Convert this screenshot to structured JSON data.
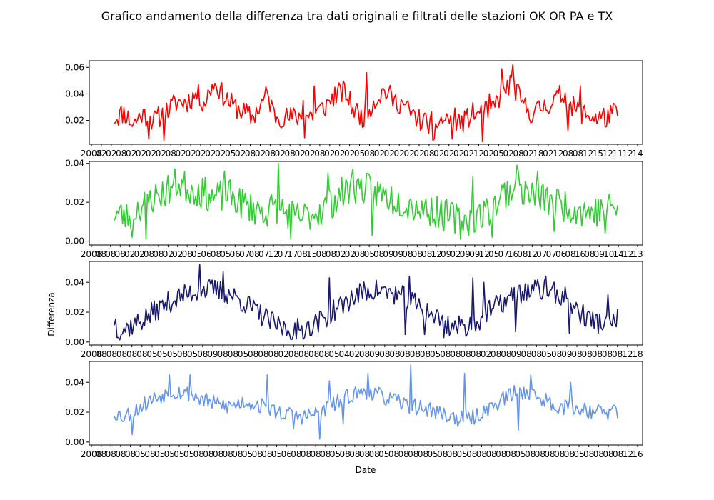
{
  "figure": {
    "suptitle": "Grafico andamento della differenza tra dati originali e filtrati delle stazioni OK OR PA e TX",
    "ylabel": "Differenza",
    "xlabel": "Date"
  },
  "chart_data": [
    {
      "type": "line",
      "color": "#ff0000",
      "ylim": [
        0.002,
        0.065
      ],
      "yticks": [
        0.02,
        0.04,
        0.06
      ],
      "ytick_labels": [
        "0.02",
        "0.04",
        "0.06"
      ],
      "xtick_labels": [
        "2008",
        "02",
        "02",
        "08",
        "02",
        "02",
        "02",
        "02",
        "08",
        "02",
        "02",
        "02",
        "02",
        "02",
        "05",
        "02",
        "08",
        "02",
        "08",
        "02",
        "08",
        "02",
        "02",
        "08",
        "02",
        "02",
        "02",
        "05",
        "08",
        "02",
        "02",
        "02",
        "02",
        "02",
        "08",
        "02",
        "02",
        "02",
        "02",
        "12",
        "02",
        "05",
        "02",
        "08",
        "02",
        "18",
        "02",
        "12",
        "08",
        "08",
        "12",
        "15",
        "12",
        "11",
        "12",
        "14"
      ],
      "x_count": 366,
      "anchors": [
        [
          0,
          0.022
        ],
        [
          8,
          0.026
        ],
        [
          15,
          0.017
        ],
        [
          22,
          0.025
        ],
        [
          32,
          0.02
        ],
        [
          42,
          0.027
        ],
        [
          50,
          0.034
        ],
        [
          58,
          0.034
        ],
        [
          66,
          0.04
        ],
        [
          72,
          0.033
        ],
        [
          80,
          0.05
        ],
        [
          86,
          0.04
        ],
        [
          95,
          0.031
        ],
        [
          104,
          0.026
        ],
        [
          110,
          0.022
        ],
        [
          116,
          0.03
        ],
        [
          122,
          0.04
        ],
        [
          128,
          0.024
        ],
        [
          138,
          0.022
        ],
        [
          148,
          0.023
        ],
        [
          158,
          0.024
        ],
        [
          168,
          0.03
        ],
        [
          176,
          0.039
        ],
        [
          184,
          0.042
        ],
        [
          190,
          0.03
        ],
        [
          198,
          0.022
        ],
        [
          208,
          0.035
        ],
        [
          216,
          0.043
        ],
        [
          224,
          0.034
        ],
        [
          230,
          0.033
        ],
        [
          238,
          0.024
        ],
        [
          246,
          0.019
        ],
        [
          254,
          0.018
        ],
        [
          262,
          0.02
        ],
        [
          270,
          0.022
        ],
        [
          278,
          0.018
        ],
        [
          286,
          0.025
        ],
        [
          294,
          0.025
        ],
        [
          302,
          0.028
        ],
        [
          310,
          0.042
        ],
        [
          318,
          0.048
        ],
        [
          326,
          0.032
        ],
        [
          334,
          0.025
        ],
        [
          342,
          0.03
        ],
        [
          350,
          0.034
        ],
        [
          358,
          0.04
        ],
        [
          366,
          0.03
        ],
        [
          375,
          0.025
        ],
        [
          385,
          0.022
        ],
        [
          395,
          0.023
        ],
        [
          402,
          0.027
        ]
      ],
      "noise": 0.0085,
      "seed": 11,
      "spikes": [
        [
          80,
          0.048
        ],
        [
          151,
          0.035
        ],
        [
          160,
          0.046
        ],
        [
          202,
          0.056
        ],
        [
          254,
          0.005
        ],
        [
          300,
          0.04
        ],
        [
          310,
          0.059
        ],
        [
          318,
          0.062
        ],
        [
          372,
          0.046
        ],
        [
          408,
          0.034
        ]
      ],
      "dips": [
        [
          28,
          0.006
        ],
        [
          40,
          0.005
        ],
        [
          152,
          0.007
        ],
        [
          256,
          0.006
        ],
        [
          270,
          0.006
        ],
        [
          294,
          0.004
        ],
        [
          362,
          0.012
        ],
        [
          392,
          0.015
        ]
      ]
    },
    {
      "type": "line",
      "color": "#32cd32",
      "ylim": [
        -0.002,
        0.041
      ],
      "yticks": [
        0.0,
        0.02,
        0.04
      ],
      "ytick_labels": [
        "0.00",
        "0.02",
        "0.04"
      ],
      "xtick_labels": [
        "2008",
        "08",
        "08",
        "08",
        "02",
        "02",
        "08",
        "08",
        "02",
        "02",
        "08",
        "05",
        "06",
        "08",
        "05",
        "06",
        "07",
        "08",
        "07",
        "12",
        "07",
        "17",
        "08",
        "15",
        "08",
        "08",
        "02",
        "02",
        "08",
        "05",
        "08",
        "09",
        "09",
        "08",
        "08",
        "08",
        "12",
        "09",
        "02",
        "09",
        "09",
        "12",
        "05",
        "07",
        "16",
        "08",
        "12",
        "07",
        "07",
        "06",
        "08",
        "16",
        "08",
        "09",
        "10",
        "14",
        "12",
        "13"
      ],
      "x_count": 366,
      "anchors": [
        [
          0,
          0.015
        ],
        [
          10,
          0.012
        ],
        [
          20,
          0.018
        ],
        [
          30,
          0.022
        ],
        [
          40,
          0.025
        ],
        [
          50,
          0.03
        ],
        [
          60,
          0.027
        ],
        [
          70,
          0.025
        ],
        [
          80,
          0.022
        ],
        [
          90,
          0.024
        ],
        [
          100,
          0.02
        ],
        [
          110,
          0.017
        ],
        [
          120,
          0.015
        ],
        [
          130,
          0.018
        ],
        [
          140,
          0.013
        ],
        [
          150,
          0.012
        ],
        [
          160,
          0.015
        ],
        [
          170,
          0.018
        ],
        [
          180,
          0.024
        ],
        [
          190,
          0.028
        ],
        [
          200,
          0.027
        ],
        [
          210,
          0.025
        ],
        [
          220,
          0.022
        ],
        [
          230,
          0.02
        ],
        [
          240,
          0.018
        ],
        [
          250,
          0.016
        ],
        [
          260,
          0.014
        ],
        [
          270,
          0.012
        ],
        [
          280,
          0.011
        ],
        [
          290,
          0.013
        ],
        [
          300,
          0.017
        ],
        [
          310,
          0.025
        ],
        [
          320,
          0.028
        ],
        [
          330,
          0.024
        ],
        [
          340,
          0.022
        ],
        [
          350,
          0.02
        ],
        [
          360,
          0.018
        ],
        [
          370,
          0.016
        ],
        [
          380,
          0.015
        ],
        [
          390,
          0.016
        ],
        [
          400,
          0.018
        ]
      ],
      "noise": 0.0085,
      "seed": 23,
      "spikes": [
        [
          88,
          0.036
        ],
        [
          130,
          0.04
        ],
        [
          170,
          0.035
        ],
        [
          190,
          0.037
        ],
        [
          285,
          0.033
        ],
        [
          320,
          0.039
        ],
        [
          336,
          0.036
        ]
      ],
      "dips": [
        [
          14,
          0.002
        ],
        [
          25,
          0.001
        ],
        [
          140,
          0.001
        ],
        [
          205,
          0.003
        ],
        [
          275,
          0.001
        ],
        [
          300,
          0.002
        ],
        [
          350,
          0.005
        ],
        [
          390,
          0.004
        ]
      ]
    },
    {
      "type": "line",
      "color": "#191970",
      "ylim": [
        -0.002,
        0.054
      ],
      "yticks": [
        0.0,
        0.02,
        0.04
      ],
      "ytick_labels": [
        "0.00",
        "0.02",
        "0.04"
      ],
      "xtick_labels": [
        "2008",
        "08",
        "08",
        "08",
        "08",
        "08",
        "05",
        "05",
        "05",
        "08",
        "05",
        "08",
        "09",
        "08",
        "08",
        "05",
        "08",
        "08",
        "08",
        "02",
        "08",
        "08",
        "08",
        "08",
        "05",
        "04",
        "02",
        "08",
        "09",
        "08",
        "08",
        "08",
        "08",
        "08",
        "05",
        "08",
        "08",
        "08",
        "08",
        "02",
        "08",
        "08",
        "09",
        "08",
        "08",
        "05",
        "08",
        "09",
        "08",
        "08",
        "08",
        "08",
        "08",
        "12",
        "18"
      ],
      "x_count": 366,
      "anchors": [
        [
          0,
          0.015
        ],
        [
          6,
          0.008
        ],
        [
          15,
          0.01
        ],
        [
          30,
          0.015
        ],
        [
          45,
          0.022
        ],
        [
          60,
          0.028
        ],
        [
          75,
          0.032
        ],
        [
          90,
          0.035
        ],
        [
          105,
          0.035
        ],
        [
          120,
          0.032
        ],
        [
          135,
          0.026
        ],
        [
          150,
          0.019
        ],
        [
          165,
          0.012
        ],
        [
          180,
          0.008
        ],
        [
          195,
          0.009
        ],
        [
          210,
          0.013
        ],
        [
          225,
          0.02
        ],
        [
          240,
          0.027
        ],
        [
          255,
          0.033
        ],
        [
          270,
          0.035
        ],
        [
          285,
          0.033
        ],
        [
          300,
          0.03
        ],
        [
          315,
          0.024
        ],
        [
          330,
          0.018
        ],
        [
          345,
          0.011
        ],
        [
          360,
          0.01
        ],
        [
          375,
          0.014
        ],
        [
          390,
          0.022
        ],
        [
          405,
          0.028
        ],
        [
          420,
          0.033
        ],
        [
          435,
          0.035
        ],
        [
          450,
          0.034
        ],
        [
          465,
          0.03
        ],
        [
          480,
          0.02
        ],
        [
          495,
          0.014
        ],
        [
          510,
          0.012
        ],
        [
          520,
          0.015
        ]
      ],
      "noise": 0.0075,
      "seed": 37,
      "spikes": [
        [
          88,
          0.052
        ],
        [
          112,
          0.047
        ],
        [
          222,
          0.043
        ],
        [
          305,
          0.044
        ],
        [
          370,
          0.043
        ],
        [
          382,
          0.04
        ],
        [
          446,
          0.044
        ],
        [
          510,
          0.032
        ]
      ],
      "dips": [
        [
          3,
          0.003
        ],
        [
          188,
          0.002
        ],
        [
          197,
          0.003
        ],
        [
          300,
          0.005
        ],
        [
          320,
          0.005
        ],
        [
          340,
          0.003
        ],
        [
          415,
          0.007
        ],
        [
          470,
          0.006
        ],
        [
          522,
          0.004
        ]
      ]
    },
    {
      "type": "line",
      "color": "#6495ed",
      "ylim": [
        -0.002,
        0.054
      ],
      "yticks": [
        0.0,
        0.02,
        0.04
      ],
      "ytick_labels": [
        "0.00",
        "0.02",
        "0.04"
      ],
      "xtick_labels": [
        "2008",
        "08",
        "08",
        "08",
        "08",
        "05",
        "08",
        "05",
        "05",
        "05",
        "05",
        "08",
        "08",
        "08",
        "08",
        "08",
        "05",
        "08",
        "08",
        "05",
        "06",
        "08",
        "08",
        "08",
        "08",
        "05",
        "08",
        "08",
        "08",
        "08",
        "05",
        "08",
        "08",
        "08",
        "08",
        "05",
        "08",
        "08",
        "05",
        "08",
        "08",
        "08",
        "08",
        "08",
        "05",
        "08",
        "08",
        "08",
        "08",
        "08",
        "05",
        "08",
        "08",
        "08",
        "08",
        "12",
        "16"
      ],
      "x_count": 366,
      "anchors": [
        [
          0,
          0.02
        ],
        [
          10,
          0.017
        ],
        [
          25,
          0.022
        ],
        [
          40,
          0.028
        ],
        [
          55,
          0.032
        ],
        [
          70,
          0.034
        ],
        [
          85,
          0.032
        ],
        [
          100,
          0.028
        ],
        [
          115,
          0.025
        ],
        [
          130,
          0.024
        ],
        [
          145,
          0.027
        ],
        [
          160,
          0.025
        ],
        [
          175,
          0.021
        ],
        [
          190,
          0.019
        ],
        [
          205,
          0.017
        ],
        [
          220,
          0.018
        ],
        [
          235,
          0.022
        ],
        [
          250,
          0.027
        ],
        [
          265,
          0.032
        ],
        [
          280,
          0.034
        ],
        [
          295,
          0.031
        ],
        [
          310,
          0.028
        ],
        [
          325,
          0.025
        ],
        [
          340,
          0.023
        ],
        [
          355,
          0.021
        ],
        [
          370,
          0.018
        ],
        [
          385,
          0.015
        ],
        [
          400,
          0.016
        ],
        [
          415,
          0.022
        ],
        [
          430,
          0.028
        ],
        [
          445,
          0.033
        ],
        [
          460,
          0.034
        ],
        [
          475,
          0.029
        ],
        [
          490,
          0.025
        ],
        [
          505,
          0.023
        ],
        [
          520,
          0.022
        ],
        [
          535,
          0.021
        ],
        [
          550,
          0.019
        ],
        [
          560,
          0.022
        ]
      ],
      "noise": 0.0055,
      "seed": 53,
      "spikes": [
        [
          62,
          0.045
        ],
        [
          85,
          0.045
        ],
        [
          170,
          0.045
        ],
        [
          240,
          0.041
        ],
        [
          282,
          0.046
        ],
        [
          330,
          0.052
        ],
        [
          390,
          0.046
        ],
        [
          463,
          0.045
        ],
        [
          508,
          0.04
        ],
        [
          568,
          0.034
        ]
      ],
      "dips": [
        [
          20,
          0.005
        ],
        [
          200,
          0.009
        ],
        [
          228,
          0.002
        ],
        [
          255,
          0.012
        ],
        [
          400,
          0.012
        ],
        [
          450,
          0.008
        ],
        [
          560,
          0.016
        ]
      ]
    }
  ]
}
